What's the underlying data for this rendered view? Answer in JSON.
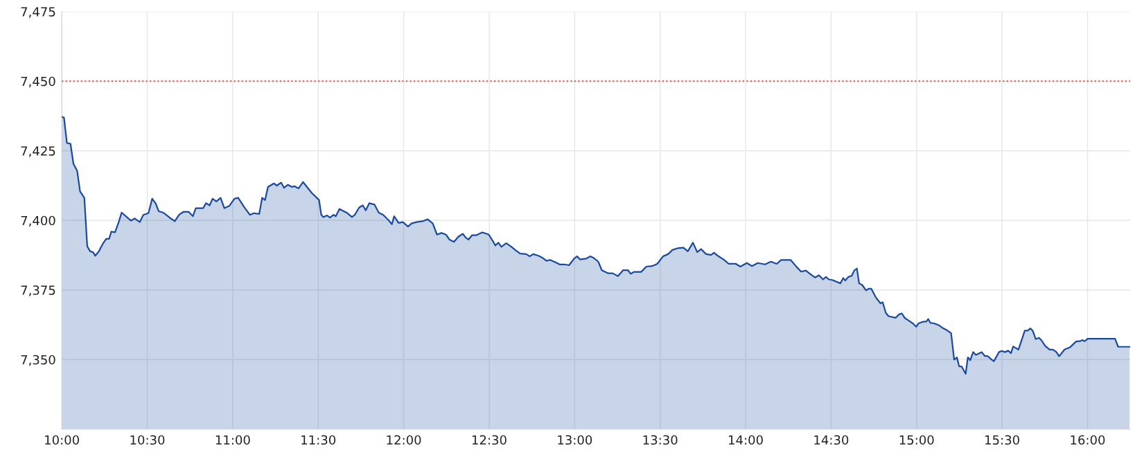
{
  "chart_data": {
    "type": "area",
    "x": [
      10.0,
      10.013,
      10.03,
      10.051,
      10.068,
      10.09,
      10.107,
      10.132,
      10.149,
      10.166,
      10.183,
      10.196,
      10.217,
      10.239,
      10.26,
      10.277,
      10.29,
      10.311,
      10.333,
      10.35,
      10.405,
      10.426,
      10.456,
      10.477,
      10.507,
      10.529,
      10.55,
      10.567,
      10.593,
      10.631,
      10.661,
      10.686,
      10.712,
      10.742,
      10.767,
      10.784,
      10.827,
      10.844,
      10.865,
      10.882,
      10.904,
      10.929,
      10.951,
      10.98,
      11.01,
      11.032,
      11.049,
      11.066,
      11.1,
      11.125,
      11.155,
      11.172,
      11.189,
      11.206,
      11.241,
      11.258,
      11.283,
      11.3,
      11.322,
      11.347,
      11.36,
      11.385,
      11.411,
      11.428,
      11.462,
      11.505,
      11.518,
      11.53,
      11.552,
      11.569,
      11.59,
      11.603,
      11.624,
      11.671,
      11.697,
      11.714,
      11.739,
      11.761,
      11.778,
      11.799,
      11.829,
      11.854,
      11.88,
      11.91,
      11.931,
      11.944,
      11.97,
      11.995,
      12.025,
      12.046,
      12.076,
      12.11,
      12.14,
      12.17,
      12.195,
      12.221,
      12.247,
      12.268,
      12.294,
      12.319,
      12.345,
      12.362,
      12.379,
      12.4,
      12.426,
      12.46,
      12.498,
      12.524,
      12.536,
      12.554,
      12.571,
      12.6,
      12.63,
      12.656,
      12.681,
      12.716,
      12.737,
      12.758,
      12.788,
      12.814,
      12.835,
      12.856,
      12.886,
      12.912,
      12.941,
      12.967,
      12.997,
      13.014,
      13.031,
      13.069,
      13.091,
      13.112,
      13.138,
      13.159,
      13.197,
      13.223,
      13.253,
      13.283,
      13.312,
      13.329,
      13.346,
      13.389,
      13.419,
      13.453,
      13.483,
      13.517,
      13.547,
      13.572,
      13.602,
      13.636,
      13.662,
      13.692,
      13.717,
      13.739,
      13.769,
      13.798,
      13.815,
      13.837,
      13.875,
      13.901,
      13.943,
      13.969,
      14.007,
      14.037,
      14.071,
      14.114,
      14.148,
      14.182,
      14.208,
      14.263,
      14.298,
      14.325,
      14.352,
      14.379,
      14.406,
      14.429,
      14.453,
      14.47,
      14.487,
      14.507,
      14.554,
      14.571,
      14.583,
      14.601,
      14.621,
      14.635,
      14.651,
      14.664,
      14.682,
      14.704,
      14.722,
      14.735,
      14.762,
      14.789,
      14.802,
      14.82,
      14.836,
      14.877,
      14.897,
      14.914,
      14.93,
      14.957,
      14.978,
      14.998,
      15.011,
      15.038,
      15.058,
      15.068,
      15.081,
      15.103,
      15.132,
      15.152,
      15.179,
      15.202,
      15.22,
      15.236,
      15.249,
      15.264,
      15.287,
      15.3,
      15.314,
      15.331,
      15.347,
      15.381,
      15.399,
      15.415,
      15.435,
      15.452,
      15.482,
      15.499,
      15.516,
      15.536,
      15.552,
      15.565,
      15.596,
      15.633,
      15.65,
      15.666,
      15.68,
      15.697,
      15.717,
      15.731,
      15.751,
      15.778,
      15.798,
      15.818,
      15.834,
      15.865,
      15.899,
      15.933,
      15.96,
      15.97,
      15.984,
      16.0,
      16.161,
      16.179,
      16.246
    ],
    "series": [
      {
        "color": "#1a4a9c",
        "values": [
          7437.2,
          7436.9,
          7427.8,
          7427.5,
          7420.4,
          7417.8,
          7410.4,
          7408.1,
          7390.7,
          7388.9,
          7388.6,
          7387.3,
          7388.9,
          7391.5,
          7393.4,
          7393.4,
          7396.0,
          7395.7,
          7399.4,
          7402.8,
          7399.9,
          7400.7,
          7399.4,
          7402.0,
          7402.6,
          7407.8,
          7406.0,
          7403.3,
          7402.8,
          7401.0,
          7399.7,
          7402.0,
          7403.1,
          7403.1,
          7401.5,
          7404.4,
          7404.4,
          7406.2,
          7405.4,
          7407.8,
          7406.8,
          7408.1,
          7404.4,
          7405.2,
          7407.8,
          7408.1,
          7406.5,
          7404.9,
          7402.0,
          7402.6,
          7402.3,
          7408.1,
          7407.3,
          7412.0,
          7413.3,
          7412.5,
          7413.6,
          7411.7,
          7412.8,
          7412.0,
          7412.3,
          7411.5,
          7413.8,
          7412.5,
          7409.9,
          7407.3,
          7402.0,
          7401.2,
          7401.8,
          7401.0,
          7402.0,
          7401.5,
          7404.1,
          7402.6,
          7401.2,
          7402.0,
          7404.6,
          7405.4,
          7403.6,
          7406.2,
          7405.7,
          7402.8,
          7402.0,
          7400.2,
          7398.6,
          7401.5,
          7399.1,
          7399.4,
          7397.8,
          7398.9,
          7399.4,
          7399.7,
          7400.4,
          7398.9,
          7394.9,
          7395.5,
          7394.9,
          7393.1,
          7392.3,
          7394.1,
          7395.2,
          7393.9,
          7393.1,
          7394.7,
          7394.7,
          7395.7,
          7394.9,
          7392.3,
          7391.0,
          7392.0,
          7390.5,
          7391.8,
          7390.5,
          7389.2,
          7388.1,
          7387.9,
          7387.1,
          7387.9,
          7387.3,
          7386.5,
          7385.5,
          7385.8,
          7385.0,
          7384.2,
          7384.2,
          7383.9,
          7386.3,
          7387.1,
          7386.0,
          7386.3,
          7387.1,
          7386.5,
          7385.2,
          7382.1,
          7381.0,
          7381.0,
          7380.0,
          7382.1,
          7382.1,
          7380.8,
          7381.5,
          7381.5,
          7383.4,
          7383.6,
          7384.4,
          7387.1,
          7387.9,
          7389.4,
          7390.0,
          7390.2,
          7388.9,
          7392.0,
          7388.6,
          7389.7,
          7387.9,
          7387.6,
          7388.4,
          7387.3,
          7385.8,
          7384.4,
          7384.4,
          7383.4,
          7384.7,
          7383.6,
          7384.7,
          7384.2,
          7385.2,
          7384.4,
          7385.8,
          7385.8,
          7383.3,
          7381.6,
          7382.0,
          7380.7,
          7379.5,
          7380.3,
          7378.8,
          7379.7,
          7378.8,
          7378.6,
          7377.4,
          7379.3,
          7378.4,
          7379.7,
          7380.1,
          7382.0,
          7382.7,
          7377.4,
          7376.8,
          7374.9,
          7375.5,
          7375.5,
          7372.3,
          7370.2,
          7370.6,
          7366.8,
          7365.6,
          7365.0,
          7366.2,
          7366.6,
          7365.0,
          7363.9,
          7363.0,
          7361.8,
          7363.0,
          7363.6,
          7363.7,
          7364.6,
          7363.2,
          7363.0,
          7362.3,
          7361.4,
          7360.5,
          7359.5,
          7350.0,
          7350.8,
          7347.6,
          7347.5,
          7344.9,
          7350.8,
          7349.8,
          7352.7,
          7351.7,
          7352.7,
          7351.3,
          7351.3,
          7350.2,
          7349.4,
          7352.7,
          7353.1,
          7352.7,
          7353.2,
          7352.3,
          7354.7,
          7353.6,
          7360.4,
          7360.4,
          7361.2,
          7360.3,
          7357.4,
          7357.8,
          7356.9,
          7355.0,
          7353.6,
          7353.6,
          7352.7,
          7351.2,
          7353.6,
          7354.5,
          7356.5,
          7356.7,
          7357.0,
          7356.6,
          7357.5,
          7357.5,
          7354.6,
          7354.6
        ]
      }
    ],
    "xlim": [
      10.0,
      16.25
    ],
    "xticks": [
      {
        "value": 10.0,
        "label": "10:00"
      },
      {
        "value": 10.5,
        "label": "10:30"
      },
      {
        "value": 11.0,
        "label": "11:00"
      },
      {
        "value": 11.5,
        "label": "11:30"
      },
      {
        "value": 12.0,
        "label": "12:00"
      },
      {
        "value": 12.5,
        "label": "12:30"
      },
      {
        "value": 13.0,
        "label": "13:00"
      },
      {
        "value": 13.5,
        "label": "13:30"
      },
      {
        "value": 14.0,
        "label": "14:00"
      },
      {
        "value": 14.5,
        "label": "14:30"
      },
      {
        "value": 15.0,
        "label": "15:00"
      },
      {
        "value": 15.5,
        "label": "15:30"
      },
      {
        "value": 16.0,
        "label": "16:00"
      }
    ],
    "ylim": [
      7325,
      7475
    ],
    "yticks": [
      {
        "value": 7350,
        "label": "7,350"
      },
      {
        "value": 7375,
        "label": "7,375"
      },
      {
        "value": 7400,
        "label": "7,400"
      },
      {
        "value": 7425,
        "label": "7,425"
      },
      {
        "value": 7450,
        "label": "7,450"
      },
      {
        "value": 7475,
        "label": "7,475"
      }
    ],
    "ref_lines": [
      {
        "axis": "y",
        "value": 7450,
        "color": "#e8473c",
        "line_style": "dotted"
      }
    ],
    "grid": true
  }
}
